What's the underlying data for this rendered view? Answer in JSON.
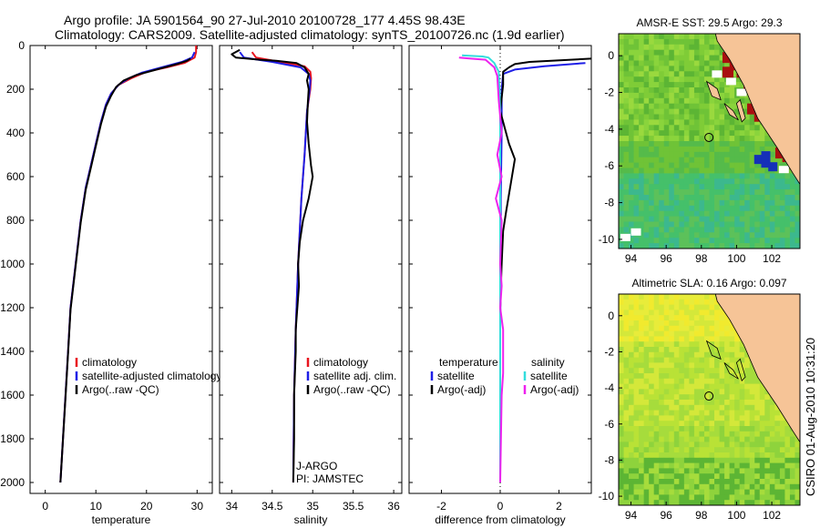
{
  "header": {
    "line1": "Argo profile: JA 5901564_90 27-Jul-2010 20100728_177 4.45S 98.43E",
    "line2": "Climatology: CARS2009. Satellite-adjusted climatology: synTS_20100726.nc (1.9d earlier)"
  },
  "side_label": "CSIRO 01-Aug-2010 10:31:20",
  "colors": {
    "red": "#e8141e",
    "blue": "#1e1ee6",
    "black": "#000000",
    "cyan": "#33dddd",
    "magenta": "#ee22ee",
    "land": "#f6c497"
  },
  "chart_data": [
    {
      "type": "line",
      "name": "temperature-profile",
      "xlabel": "temperature",
      "ylabel": "",
      "xlim": [
        -3,
        33
      ],
      "ylim": [
        2050,
        0
      ],
      "xticks": [
        "0",
        "10",
        "20",
        "30"
      ],
      "xtick_values": [
        0,
        10,
        20,
        30
      ],
      "yticks": [
        "0",
        "200",
        "400",
        "600",
        "800",
        "1000",
        "1200",
        "1400",
        "1600",
        "1800",
        "2000"
      ],
      "ytick_values": [
        0,
        200,
        400,
        600,
        800,
        1000,
        1200,
        1400,
        1600,
        1800,
        2000
      ],
      "series": [
        {
          "name": "climatology",
          "color": "#e8141e",
          "points": [
            [
              29.8,
              0
            ],
            [
              29.8,
              30
            ],
            [
              29.5,
              55
            ],
            [
              27.5,
              80
            ],
            [
              24,
              100
            ],
            [
              20,
              120
            ],
            [
              17,
              150
            ],
            [
              14.5,
              180
            ],
            [
              13,
              220
            ],
            [
              12,
              270
            ],
            [
              11,
              350
            ],
            [
              10,
              450
            ],
            [
              9,
              550
            ],
            [
              8,
              650
            ],
            [
              7,
              800
            ],
            [
              6,
              1000
            ],
            [
              5,
              1200
            ],
            [
              4.5,
              1400
            ],
            [
              4,
              1600
            ],
            [
              3,
              2000
            ]
          ]
        },
        {
          "name": "satellite-adjusted climatology",
          "color": "#1e1ee6",
          "points": [
            [
              29.5,
              30
            ],
            [
              29,
              55
            ],
            [
              27,
              75
            ],
            [
              23,
              100
            ],
            [
              19,
              125
            ],
            [
              16.5,
              150
            ],
            [
              14.5,
              180
            ],
            [
              13,
              220
            ],
            [
              12,
              270
            ],
            [
              11,
              350
            ],
            [
              10,
              450
            ],
            [
              9,
              550
            ],
            [
              8,
              650
            ],
            [
              7,
              800
            ],
            [
              6,
              1000
            ],
            [
              5,
              1200
            ],
            [
              4.5,
              1400
            ],
            [
              4,
              1600
            ],
            [
              3,
              2000
            ]
          ]
        },
        {
          "name": "Argo(..raw -QC)",
          "color": "#000000",
          "points": [
            [
              28.7,
              60
            ],
            [
              28,
              70
            ],
            [
              26,
              85
            ],
            [
              22,
              110
            ],
            [
              18,
              135
            ],
            [
              15.5,
              160
            ],
            [
              14,
              190
            ],
            [
              13,
              230
            ],
            [
              12,
              280
            ],
            [
              11,
              360
            ],
            [
              10,
              460
            ],
            [
              9,
              560
            ],
            [
              8,
              660
            ],
            [
              7,
              810
            ],
            [
              6,
              1010
            ],
            [
              5,
              1210
            ],
            [
              4.5,
              1410
            ],
            [
              4,
              1610
            ],
            [
              3,
              2000
            ]
          ]
        }
      ],
      "legend": {
        "position": "lower-right",
        "items": [
          "climatology",
          "satellite-adjusted climatology",
          "Argo(..raw -QC)"
        ]
      }
    },
    {
      "type": "line",
      "name": "salinity-profile",
      "xlabel": "salinity",
      "xlim": [
        33.85,
        36.1
      ],
      "ylim": [
        2050,
        0
      ],
      "xticks": [
        "34",
        "34.5",
        "35",
        "35.5",
        "36"
      ],
      "xtick_values": [
        34,
        34.5,
        35,
        35.5,
        36
      ],
      "series": [
        {
          "name": "climatology",
          "color": "#e8141e",
          "points": [
            [
              34.25,
              30
            ],
            [
              34.3,
              55
            ],
            [
              34.6,
              75
            ],
            [
              34.9,
              95
            ],
            [
              34.97,
              120
            ],
            [
              34.98,
              150
            ],
            [
              34.97,
              200
            ],
            [
              34.93,
              300
            ],
            [
              34.9,
              500
            ],
            [
              34.86,
              700
            ],
            [
              34.82,
              1000
            ],
            [
              34.79,
              1300
            ],
            [
              34.77,
              1600
            ],
            [
              34.76,
              2000
            ]
          ]
        },
        {
          "name": "satellite adj. clim.",
          "color": "#1e1ee6",
          "points": [
            [
              34.1,
              30
            ],
            [
              34.15,
              55
            ],
            [
              34.5,
              75
            ],
            [
              34.85,
              100
            ],
            [
              34.95,
              130
            ],
            [
              34.97,
              160
            ],
            [
              34.96,
              210
            ],
            [
              34.93,
              300
            ],
            [
              34.9,
              500
            ],
            [
              34.86,
              700
            ],
            [
              34.82,
              1000
            ],
            [
              34.79,
              1300
            ],
            [
              34.77,
              1600
            ],
            [
              34.76,
              2000
            ]
          ]
        },
        {
          "name": "Argo(..raw -QC)",
          "color": "#000000",
          "points": [
            [
              34.1,
              20
            ],
            [
              34.0,
              40
            ],
            [
              34.05,
              55
            ],
            [
              34.35,
              65
            ],
            [
              34.55,
              70
            ],
            [
              34.8,
              80
            ],
            [
              34.9,
              100
            ],
            [
              34.95,
              130
            ],
            [
              34.93,
              160
            ],
            [
              34.95,
              200
            ],
            [
              34.94,
              260
            ],
            [
              34.93,
              350
            ],
            [
              34.95,
              450
            ],
            [
              34.98,
              550
            ],
            [
              35.0,
              600
            ],
            [
              34.95,
              700
            ],
            [
              34.88,
              800
            ],
            [
              34.84,
              900
            ],
            [
              34.82,
              1000
            ],
            [
              34.83,
              1100
            ],
            [
              34.79,
              1300
            ],
            [
              34.79,
              1400
            ],
            [
              34.78,
              1500
            ],
            [
              34.77,
              1600
            ],
            [
              34.77,
              1800
            ],
            [
              34.76,
              2000
            ]
          ]
        }
      ],
      "legend": {
        "position": "lower-right",
        "items": [
          "climatology",
          "satellite adj. clim.",
          "Argo(..raw -QC)"
        ]
      },
      "annotations": [
        "J-ARGO",
        "PI: JAMSTEC"
      ]
    },
    {
      "type": "line",
      "name": "difference-profile",
      "xlabel": "difference from climatology",
      "xlim": [
        -3.1,
        3.1
      ],
      "ylim": [
        2050,
        0
      ],
      "xticks": [
        "-2",
        "0",
        "2"
      ],
      "xtick_values": [
        -2,
        0,
        2
      ],
      "series": [
        {
          "name": "temperature satellite",
          "color": "#1e1ee6",
          "points": [
            [
              2.9,
              80
            ],
            [
              1.5,
              95
            ],
            [
              0.5,
              110
            ],
            [
              0.1,
              130
            ],
            [
              0.05,
              200
            ],
            [
              0.05,
              400
            ],
            [
              0.02,
              700
            ],
            [
              0.02,
              1000
            ],
            [
              0.0,
              1300
            ],
            [
              0.0,
              1600
            ],
            [
              0.0,
              2000
            ]
          ]
        },
        {
          "name": "temperature Argo(-adj)",
          "color": "#000000",
          "points": [
            [
              3.1,
              60
            ],
            [
              1.0,
              75
            ],
            [
              0.5,
              85
            ],
            [
              0.3,
              100
            ],
            [
              0.1,
              120
            ],
            [
              0.1,
              180
            ],
            [
              0.0,
              300
            ],
            [
              0.3,
              450
            ],
            [
              0.5,
              520
            ],
            [
              0.4,
              600
            ],
            [
              0.3,
              680
            ],
            [
              0.2,
              760
            ],
            [
              0.1,
              850
            ],
            [
              0.05,
              1000
            ],
            [
              0.0,
              1200
            ],
            [
              0.0,
              1600
            ],
            [
              0.0,
              2000
            ]
          ]
        },
        {
          "name": "salinity satellite",
          "color": "#33dddd",
          "points": [
            [
              -1.3,
              45
            ],
            [
              -0.6,
              50
            ],
            [
              -0.4,
              55
            ],
            [
              -0.2,
              80
            ],
            [
              -0.05,
              120
            ],
            [
              0.0,
              300
            ],
            [
              0.0,
              600
            ],
            [
              0.0,
              1000
            ],
            [
              0.0,
              1400
            ],
            [
              0.0,
              2000
            ]
          ]
        },
        {
          "name": "salinity Argo(-adj)",
          "color": "#ee22ee",
          "points": [
            [
              -1.4,
              55
            ],
            [
              -1.0,
              60
            ],
            [
              -0.5,
              65
            ],
            [
              -0.2,
              100
            ],
            [
              -0.1,
              140
            ],
            [
              -0.05,
              250
            ],
            [
              0.05,
              400
            ],
            [
              -0.1,
              500
            ],
            [
              0.05,
              600
            ],
            [
              -0.15,
              700
            ],
            [
              0.05,
              800
            ],
            [
              0.0,
              1000
            ],
            [
              0.05,
              1100
            ],
            [
              0.0,
              1200
            ],
            [
              0.1,
              1300
            ],
            [
              0.1,
              1500
            ],
            [
              0.05,
              1600
            ],
            [
              0.0,
              2000
            ]
          ]
        }
      ],
      "legend": {
        "position": "lower-center",
        "items": [
          "temperature",
          "satellite",
          "Argo(-adj)",
          "salinity",
          "satellite",
          "Argo(-adj)"
        ]
      }
    },
    {
      "type": "heatmap",
      "name": "sst-map",
      "title": "AMSR-E SST: 29.5 Argo: 29.3",
      "xlim": [
        93.3,
        103.6
      ],
      "ylim": [
        -10.5,
        1.2
      ],
      "xticks": [
        "94",
        "96",
        "98",
        "100",
        "102"
      ],
      "xtick_values": [
        94,
        96,
        98,
        100,
        102
      ],
      "yticks": [
        "0",
        "-2",
        "-4",
        "-6",
        "-8",
        "-10"
      ],
      "ytick_values": [
        0,
        -2,
        -4,
        -6,
        -8,
        -10
      ],
      "float_position": [
        98.43,
        -4.45
      ]
    },
    {
      "type": "heatmap",
      "name": "sla-map",
      "title": "Altimetric SLA: 0.16 Argo: 0.097",
      "xlim": [
        93.3,
        103.6
      ],
      "ylim": [
        -10.5,
        1.2
      ],
      "xticks": [
        "94",
        "96",
        "98",
        "100",
        "102"
      ],
      "xtick_values": [
        94,
        96,
        98,
        100,
        102
      ],
      "yticks": [
        "0",
        "-2",
        "-4",
        "-6",
        "-8",
        "-10"
      ],
      "ytick_values": [
        0,
        -2,
        -4,
        -6,
        -8,
        -10
      ],
      "float_position": [
        98.43,
        -4.45
      ]
    }
  ]
}
